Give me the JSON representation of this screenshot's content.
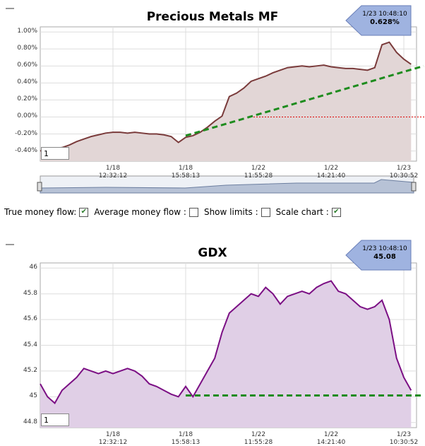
{
  "chart_data": [
    {
      "type": "line",
      "title": "Precious Metals MF",
      "categories": [
        null,
        null,
        null,
        null,
        null,
        null,
        null,
        null,
        null,
        null,
        "1/18 12:32:12",
        null,
        null,
        null,
        null,
        null,
        null,
        null,
        null,
        null,
        "1/18 15:58:13",
        null,
        null,
        null,
        null,
        null,
        null,
        null,
        null,
        null,
        "1/22 11:55:28",
        null,
        null,
        null,
        null,
        null,
        null,
        null,
        null,
        null,
        "1/22 14:21:40",
        null,
        null,
        null,
        null,
        null,
        null,
        null,
        null,
        null,
        "1/23 10:30:52",
        null
      ],
      "series": [
        {
          "color": "#7a3b3b",
          "fill": "#e2d6d6",
          "values": [
            -0.4,
            -0.38,
            -0.37,
            -0.36,
            -0.33,
            -0.29,
            -0.26,
            -0.23,
            -0.21,
            -0.19,
            -0.18,
            -0.18,
            -0.19,
            -0.18,
            -0.19,
            -0.2,
            -0.2,
            -0.21,
            -0.23,
            -0.3,
            -0.24,
            -0.22,
            -0.18,
            -0.12,
            -0.05,
            0.01,
            0.24,
            0.28,
            0.34,
            0.42,
            0.45,
            0.48,
            0.52,
            0.55,
            0.58,
            0.59,
            0.6,
            0.59,
            0.6,
            0.61,
            0.59,
            0.58,
            0.57,
            0.57,
            0.56,
            0.55,
            0.58,
            0.85,
            0.88,
            0.76,
            0.68,
            0.62
          ]
        }
      ],
      "ylim": [
        -0.52,
        1.06
      ],
      "yticks": [
        {
          "value": -0.4,
          "label": "-0.40%"
        },
        {
          "value": -0.2,
          "label": "-0.20%"
        },
        {
          "value": 0,
          "label": "0.00%"
        },
        {
          "value": 0.2,
          "label": "0.20%"
        },
        {
          "value": 0.4,
          "label": "0.40%"
        },
        {
          "value": 0.6,
          "label": "0.60%"
        },
        {
          "value": 0.8,
          "label": "0.80%"
        },
        {
          "value": 1.0,
          "label": "1.00%"
        }
      ],
      "trend_line": [
        -0.22,
        0.6
      ],
      "reference_line": 0,
      "grid": true,
      "annotation_time": "1/23 10:48:10",
      "annotation_value": "0.628%",
      "input_value": "1"
    },
    {
      "type": "line",
      "title": "GDX",
      "categories": [
        null,
        null,
        null,
        null,
        null,
        null,
        null,
        null,
        null,
        null,
        "1/18 12:32:12",
        null,
        null,
        null,
        null,
        null,
        null,
        null,
        null,
        null,
        "1/18 15:58:13",
        null,
        null,
        null,
        null,
        null,
        null,
        null,
        null,
        null,
        "1/22 11:55:28",
        null,
        null,
        null,
        null,
        null,
        null,
        null,
        null,
        null,
        "1/22 14:21:40",
        null,
        null,
        null,
        null,
        null,
        null,
        null,
        null,
        null,
        "1/23 10:30:52",
        null
      ],
      "series": [
        {
          "color": "#7b0f84",
          "fill": "#e0cfe6",
          "values": [
            45.1,
            45.0,
            44.95,
            45.05,
            45.1,
            45.15,
            45.22,
            45.2,
            45.18,
            45.2,
            45.18,
            45.2,
            45.22,
            45.2,
            45.16,
            45.1,
            45.08,
            45.05,
            45.02,
            45.0,
            45.08,
            45.0,
            45.1,
            45.2,
            45.3,
            45.5,
            45.65,
            45.7,
            45.75,
            45.8,
            45.78,
            45.85,
            45.8,
            45.72,
            45.78,
            45.8,
            45.82,
            45.8,
            45.85,
            45.88,
            45.9,
            45.82,
            45.8,
            45.75,
            45.7,
            45.68,
            45.7,
            45.75,
            45.6,
            45.3,
            45.15,
            45.05
          ]
        }
      ],
      "ylim": [
        44.76,
        46.04
      ],
      "yticks": [
        44.8,
        45,
        45.2,
        45.4,
        45.6,
        45.8,
        46
      ],
      "trend_line": [
        45.01,
        45.01
      ],
      "grid": true,
      "annotation_time": "1/23 10:48:10",
      "annotation_value": 45.08,
      "input_value": "1"
    }
  ],
  "controls": [
    "True money flow:",
    "Average money flow :",
    "Show limits :",
    "Scale chart :"
  ],
  "checked": [
    true,
    false,
    false,
    true
  ]
}
